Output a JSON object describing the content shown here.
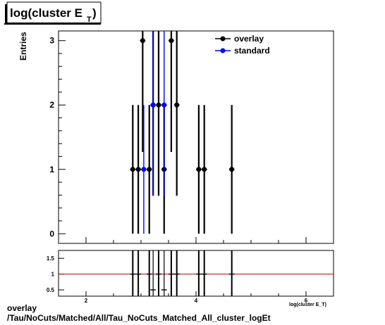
{
  "title": {
    "main": "log(cluster E",
    "sub": "T",
    "close": ")"
  },
  "footer": {
    "line1": "overlay",
    "line2": "/Tau/NoCuts/Matched/All/Tau_NoCuts_Matched_All_cluster_logEt"
  },
  "chart_data": [
    {
      "type": "scatter",
      "ylabel": "Entries",
      "xlim": [
        1.5,
        6.5
      ],
      "ylim": [
        -0.15,
        3.15
      ],
      "yticks": [
        "0",
        "1",
        "2",
        "3"
      ],
      "legend": {
        "placement": "top-right",
        "entries": [
          "overlay",
          "standard"
        ]
      },
      "colors": {
        "overlay": "#000000",
        "standard": "#0000ff",
        "ratio_line": "#cc0000"
      },
      "series": [
        {
          "name": "overlay",
          "x": [
            2.85,
            2.95,
            3.03,
            3.15,
            3.22,
            3.32,
            3.42,
            3.55,
            3.65,
            4.05,
            4.15,
            4.65
          ],
          "y": [
            1,
            1,
            3,
            1,
            2,
            2,
            1,
            3,
            2,
            1,
            1,
            1
          ],
          "yerr": [
            1,
            1,
            1.73,
            1,
            1.41,
            1.41,
            1,
            1.73,
            1.41,
            1,
            1,
            1
          ]
        },
        {
          "name": "standard",
          "x": [
            3.05,
            3.22,
            3.42
          ],
          "y": [
            1,
            2,
            2
          ],
          "yerr": [
            1,
            1.41,
            1.41
          ]
        }
      ]
    },
    {
      "type": "scatter",
      "xlabel": "log(cluster E_T)",
      "xlim": [
        1.5,
        6.5
      ],
      "ylim": [
        0.3,
        1.75
      ],
      "xticks": [
        "2",
        "4",
        "6"
      ],
      "yticks": [
        "0.5",
        "1",
        "1.5"
      ],
      "reference_line": 1,
      "series": [
        {
          "name": "ratio",
          "x": [
            2.85,
            2.95,
            3.15,
            3.22,
            3.32,
            3.42,
            3.55,
            3.65,
            4.05,
            4.15,
            4.65
          ],
          "y": [
            1,
            1,
            1,
            0.5,
            1,
            0.5,
            1,
            1,
            1,
            1,
            1
          ]
        }
      ]
    }
  ]
}
